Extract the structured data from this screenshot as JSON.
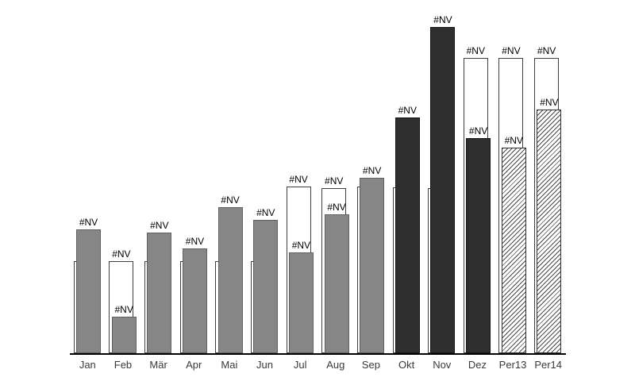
{
  "chart_data": {
    "type": "bar",
    "title": "",
    "categories": [
      "Jan",
      "Feb",
      "Mär",
      "Apr",
      "Mai",
      "Jun",
      "Jul",
      "Aug",
      "Sep",
      "Okt",
      "Nov",
      "Dez",
      "Per13",
      "Per14"
    ],
    "series": [
      {
        "name": "outline",
        "style": "outline",
        "values": [
          116,
          116,
          116,
          116,
          116,
          116,
          210,
          208,
          210,
          209,
          208,
          372,
          372,
          372
        ]
      },
      {
        "name": "filled",
        "style": "filled",
        "fill_styles": [
          "gray",
          "gray",
          "gray",
          "gray",
          "gray",
          "gray",
          "gray",
          "gray",
          "gray",
          "dark",
          "dark",
          "dark",
          "hatch",
          "hatch"
        ],
        "values": [
          156,
          46,
          152,
          132,
          184,
          168,
          127,
          175,
          221,
          297,
          411,
          271,
          259,
          307
        ]
      }
    ],
    "data_label": "#NV",
    "ylim": [
      0,
      420
    ],
    "legend": "none",
    "grid": "off"
  },
  "colors": {
    "background": "#ffffff",
    "bar_gray": "#868686",
    "bar_gray_border": "#606060",
    "bar_dark": "#2e2e2e",
    "bar_dark_border": "#161616",
    "outline_fill": "#ffffff",
    "outline_border": "#3f3f3f",
    "hatch_line": "#4a4a4a",
    "hatch_bg": "#ffffff",
    "hatch_border": "#333333",
    "axis": "#000000",
    "nv_label": "#000000",
    "category_label": "#3a3a3a"
  }
}
